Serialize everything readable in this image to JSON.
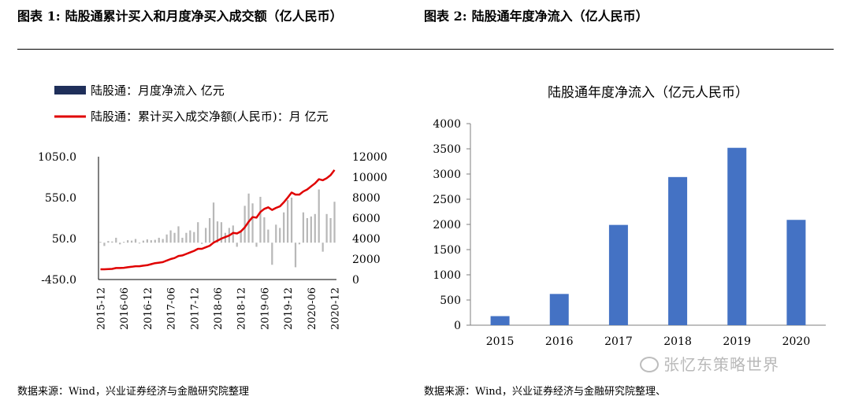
{
  "chart_data": [
    {
      "type": "bar+line",
      "figure_label": "图表 1:",
      "title": "陆股通累计买入和月度净买入成交额（亿人民币）",
      "source": "数据来源：Wind，兴业证券经济与金融研究院整理",
      "legend": [
        {
          "name": "陆股通：月度净流入 亿元",
          "type": "bar",
          "color": "#1f2f5a"
        },
        {
          "name": "陆股通：累计买入成交净额(人民币)：月 亿元",
          "type": "line",
          "color": "#e00000"
        }
      ],
      "y_left": {
        "min": -450,
        "max": 1050,
        "ticks": [
          "1050.0",
          "550.0",
          "50.0",
          "-450.0"
        ],
        "tick_values": [
          1050,
          550,
          50,
          -450
        ]
      },
      "y_right": {
        "min": 0,
        "max": 12000,
        "ticks": [
          "12000",
          "10000",
          "8000",
          "6000",
          "4000",
          "2000",
          "0"
        ],
        "tick_values": [
          12000,
          10000,
          8000,
          6000,
          4000,
          2000,
          0
        ]
      },
      "x_ticks": [
        "2015-12",
        "2016-06",
        "2016-12",
        "2017-06",
        "2017-12",
        "2018-06",
        "2018-12",
        "2019-06",
        "2019-12",
        "2020-06",
        "2020-12"
      ],
      "months": [
        "2015-12",
        "2016-01",
        "2016-02",
        "2016-03",
        "2016-04",
        "2016-05",
        "2016-06",
        "2016-07",
        "2016-08",
        "2016-09",
        "2016-10",
        "2016-11",
        "2016-12",
        "2017-01",
        "2017-02",
        "2017-03",
        "2017-04",
        "2017-05",
        "2017-06",
        "2017-07",
        "2017-08",
        "2017-09",
        "2017-10",
        "2017-11",
        "2017-12",
        "2018-01",
        "2018-02",
        "2018-03",
        "2018-04",
        "2018-05",
        "2018-06",
        "2018-07",
        "2018-08",
        "2018-09",
        "2018-10",
        "2018-11",
        "2018-12",
        "2019-01",
        "2019-02",
        "2019-03",
        "2019-04",
        "2019-05",
        "2019-06",
        "2019-07",
        "2019-08",
        "2019-09",
        "2019-10",
        "2019-11",
        "2019-12",
        "2020-01",
        "2020-02",
        "2020-03",
        "2020-04",
        "2020-05",
        "2020-06",
        "2020-07",
        "2020-08",
        "2020-09",
        "2020-10",
        "2020-11",
        "2020-12"
      ],
      "monthly_net_inflow": [
        10,
        -40,
        20,
        15,
        60,
        -20,
        10,
        30,
        25,
        45,
        -10,
        25,
        40,
        30,
        35,
        60,
        45,
        100,
        150,
        120,
        200,
        60,
        120,
        150,
        130,
        250,
        -15,
        180,
        300,
        490,
        260,
        250,
        120,
        180,
        210,
        -50,
        150,
        450,
        600,
        480,
        -50,
        560,
        310,
        160,
        -270,
        220,
        180,
        370,
        520,
        550,
        -300,
        -20,
        370,
        300,
        320,
        350,
        650,
        -110,
        350,
        300,
        500
      ],
      "cumulative": [
        1000,
        1000,
        1020,
        1040,
        1120,
        1120,
        1150,
        1200,
        1250,
        1300,
        1300,
        1350,
        1400,
        1500,
        1600,
        1650,
        1700,
        1850,
        2000,
        2100,
        2300,
        2350,
        2500,
        2650,
        2800,
        3000,
        3000,
        3150,
        3300,
        3600,
        3800,
        4000,
        4150,
        4300,
        4550,
        4500,
        4700,
        5100,
        5650,
        6100,
        6050,
        6600,
        6900,
        7050,
        6800,
        7000,
        7150,
        7550,
        8000,
        8500,
        8300,
        8300,
        8600,
        8800,
        9100,
        9400,
        9800,
        9700,
        9900,
        10200,
        10700
      ]
    },
    {
      "type": "bar",
      "figure_label": "图表 2:",
      "title": "陆股通年度净流入（亿人民币）",
      "chart_title": "陆股通年度净流入（亿元人民币）",
      "source": "数据来源：Wind，兴业证券经济与金融研究院整理、",
      "categories": [
        "2015",
        "2016",
        "2017",
        "2018",
        "2019",
        "2020"
      ],
      "values": [
        180,
        620,
        1990,
        2940,
        3520,
        2090
      ],
      "ylim": [
        0,
        4000
      ],
      "y_ticks": [
        "4000",
        "3500",
        "3000",
        "2500",
        "2000",
        "1500",
        "1000",
        "500",
        "0"
      ],
      "y_tick_values": [
        4000,
        3500,
        3000,
        2500,
        2000,
        1500,
        1000,
        500,
        0
      ],
      "bar_color": "#4472c4",
      "grid": false
    }
  ],
  "watermark": "张忆东策略世界",
  "watermark_icon": "wechat-icon"
}
